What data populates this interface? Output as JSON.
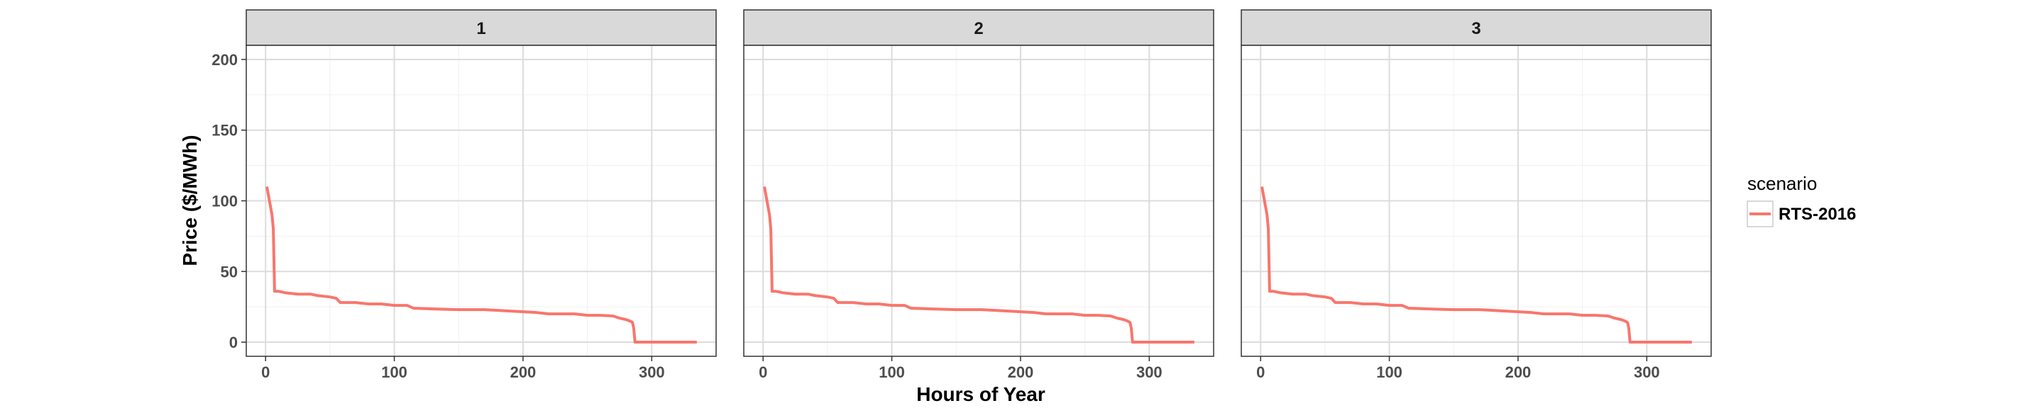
{
  "chart_data": {
    "type": "line",
    "xlabel": "Hours of Year",
    "ylabel": "Price ($/MWh)",
    "xlim": [
      -15,
      350
    ],
    "ylim": [
      -10,
      210
    ],
    "x_ticks": [
      0,
      100,
      200,
      300
    ],
    "y_ticks": [
      0,
      50,
      100,
      150,
      200
    ],
    "grid": true,
    "legend": {
      "title": "scenario",
      "position": "right"
    },
    "panels": [
      {
        "label": "1",
        "series": [
          {
            "name": "RTS-2016",
            "color": "#F8766D",
            "x": [
              1,
              2,
              3,
              4,
              5,
              6,
              7,
              8,
              10,
              15,
              25,
              35,
              40,
              50,
              55,
              58,
              70,
              80,
              90,
              100,
              110,
              115,
              130,
              150,
              170,
              180,
              190,
              200,
              210,
              220,
              240,
              250,
              260,
              270,
              275,
              280,
              283,
              285,
              286,
              287,
              290,
              300,
              335
            ],
            "y": [
              110,
              105,
              100,
              95,
              90,
              80,
              36,
              36,
              36,
              35,
              34,
              34,
              33,
              32,
              31,
              28,
              28,
              27,
              27,
              26,
              26,
              24,
              23.5,
              23,
              23,
              22.5,
              22,
              21.5,
              21,
              20,
              20,
              19,
              19,
              18.5,
              17,
              16,
              15,
              14,
              10,
              0,
              0,
              0,
              0
            ]
          }
        ]
      },
      {
        "label": "2",
        "series": [
          {
            "name": "RTS-2016",
            "color": "#F8766D",
            "x": [
              1,
              2,
              3,
              4,
              5,
              6,
              7,
              8,
              10,
              15,
              25,
              35,
              40,
              50,
              55,
              58,
              70,
              80,
              90,
              100,
              110,
              115,
              130,
              150,
              170,
              180,
              190,
              200,
              210,
              220,
              240,
              250,
              260,
              270,
              275,
              280,
              283,
              285,
              286,
              287,
              290,
              300,
              335
            ],
            "y": [
              110,
              105,
              100,
              95,
              90,
              80,
              36,
              36,
              36,
              35,
              34,
              34,
              33,
              32,
              31,
              28,
              28,
              27,
              27,
              26,
              26,
              24,
              23.5,
              23,
              23,
              22.5,
              22,
              21.5,
              21,
              20,
              20,
              19,
              19,
              18.5,
              17,
              16,
              15,
              14,
              10,
              0,
              0,
              0,
              0
            ]
          }
        ]
      },
      {
        "label": "3",
        "series": [
          {
            "name": "RTS-2016",
            "color": "#F8766D",
            "x": [
              1,
              2,
              3,
              4,
              5,
              6,
              7,
              8,
              10,
              15,
              25,
              35,
              40,
              50,
              55,
              58,
              70,
              80,
              90,
              100,
              110,
              115,
              130,
              150,
              170,
              180,
              190,
              200,
              210,
              220,
              240,
              250,
              260,
              270,
              275,
              280,
              283,
              285,
              286,
              287,
              290,
              300,
              335
            ],
            "y": [
              110,
              105,
              100,
              95,
              90,
              80,
              36,
              36,
              36,
              35,
              34,
              34,
              33,
              32,
              31,
              28,
              28,
              27,
              27,
              26,
              26,
              24,
              23.5,
              23,
              23,
              22.5,
              22,
              21.5,
              21,
              20,
              20,
              19,
              19,
              18.5,
              17,
              16,
              15,
              14,
              10,
              0,
              0,
              0,
              0
            ]
          }
        ]
      }
    ]
  }
}
